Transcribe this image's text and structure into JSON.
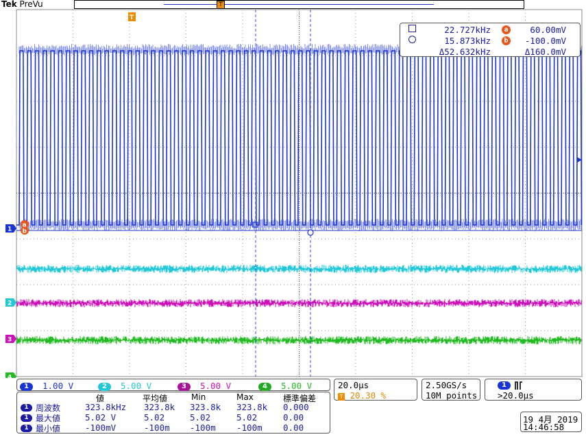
{
  "header": {
    "brand": "Tek",
    "mode": "PreVu",
    "trigger_marker_icon": "trigger-position-icon"
  },
  "cursor_readout": {
    "a_freq": "22.727kHz",
    "a_volt": "60.00mV",
    "b_freq": "15.873kHz",
    "b_volt": "-100.0mV",
    "delta_freq": "Δ52.632kHz",
    "delta_volt": "Δ160.0mV",
    "badge_a": "a",
    "badge_b": "b"
  },
  "channels": [
    {
      "id": "1",
      "scale": "1.00 V",
      "color": "#1a33d6"
    },
    {
      "id": "2",
      "scale": "5.00 V",
      "color": "#22c8d8"
    },
    {
      "id": "3",
      "scale": "5.00 V",
      "color": "#cc11bb"
    },
    {
      "id": "4",
      "scale": "5.00 V",
      "color": "#22bb22"
    }
  ],
  "timebase": {
    "scale": "20.0µs",
    "trigger_pos": "20.30 %",
    "trigger_icon": "T"
  },
  "acquisition": {
    "sample_rate": "2.50GS/s",
    "record_length": "10M points"
  },
  "trigger": {
    "source": "1",
    "slope_icon": "٢",
    "condition": ">20.0µs"
  },
  "measurements": {
    "headers": [
      "値",
      "平均値",
      "Min",
      "Max",
      "標準偏差"
    ],
    "rows": [
      {
        "name": "周波数",
        "value": "323.8kHz",
        "mean": "323.8k",
        "min": "323.8k",
        "max": "323.8k",
        "std": "0.000"
      },
      {
        "name": "最大値",
        "value": "5.02 V",
        "mean": "5.02",
        "min": "5.02",
        "max": "5.02",
        "std": "0.00"
      },
      {
        "name": "最小値",
        "value": "-100mV",
        "mean": "-100m",
        "min": "-100m",
        "max": "-100m",
        "std": "0.00"
      }
    ]
  },
  "datetime": {
    "date": "19 4月  2019",
    "time": "14:46:58"
  }
}
